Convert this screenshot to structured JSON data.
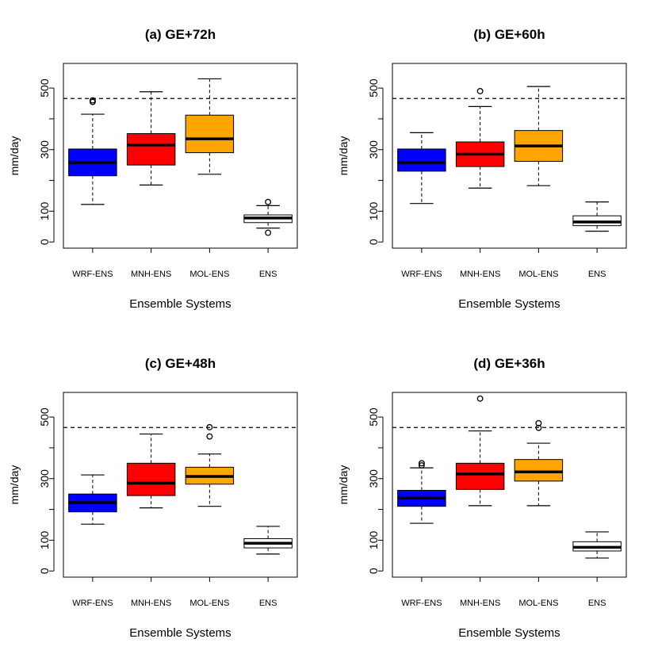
{
  "chart_data": [
    {
      "type": "boxplot",
      "title": "(a) GE+72h",
      "xlabel": "Ensemble Systems",
      "ylabel": "mm/day",
      "ylim": [
        -20,
        580
      ],
      "yticks": [
        0,
        100,
        300,
        500
      ],
      "reference_line": 466,
      "categories": [
        "WRF-ENS",
        "MNH-ENS",
        "MOL-ENS",
        "ENS"
      ],
      "colors": [
        "#0000ff",
        "#ff0000",
        "#ffa500",
        "#ffffff"
      ],
      "boxes": [
        {
          "lower_whisker": 122,
          "q1": 215,
          "median": 258,
          "q3": 302,
          "upper_whisker": 415,
          "outliers": [
            455,
            460
          ]
        },
        {
          "lower_whisker": 185,
          "q1": 250,
          "median": 315,
          "q3": 352,
          "upper_whisker": 488,
          "outliers": []
        },
        {
          "lower_whisker": 220,
          "q1": 290,
          "median": 335,
          "q3": 412,
          "upper_whisker": 530,
          "outliers": []
        },
        {
          "lower_whisker": 45,
          "q1": 63,
          "median": 78,
          "q3": 88,
          "upper_whisker": 118,
          "outliers": [
            130,
            30
          ]
        }
      ]
    },
    {
      "type": "boxplot",
      "title": "(b) GE+60h",
      "xlabel": "Ensemble Systems",
      "ylabel": "mm/day",
      "ylim": [
        -20,
        580
      ],
      "yticks": [
        0,
        100,
        300,
        500
      ],
      "reference_line": 466,
      "categories": [
        "WRF-ENS",
        "MNH-ENS",
        "MOL-ENS",
        "ENS"
      ],
      "colors": [
        "#0000ff",
        "#ff0000",
        "#ffa500",
        "#ffffff"
      ],
      "boxes": [
        {
          "lower_whisker": 125,
          "q1": 230,
          "median": 258,
          "q3": 302,
          "upper_whisker": 355,
          "outliers": []
        },
        {
          "lower_whisker": 175,
          "q1": 245,
          "median": 285,
          "q3": 325,
          "upper_whisker": 440,
          "outliers": [
            490
          ]
        },
        {
          "lower_whisker": 183,
          "q1": 262,
          "median": 312,
          "q3": 362,
          "upper_whisker": 505,
          "outliers": []
        },
        {
          "lower_whisker": 35,
          "q1": 53,
          "median": 65,
          "q3": 85,
          "upper_whisker": 130,
          "outliers": []
        }
      ]
    },
    {
      "type": "boxplot",
      "title": "(c) GE+48h",
      "xlabel": "Ensemble Systems",
      "ylabel": "mm/day",
      "ylim": [
        -20,
        580
      ],
      "yticks": [
        0,
        100,
        300,
        500
      ],
      "reference_line": 466,
      "categories": [
        "WRF-ENS",
        "MNH-ENS",
        "MOL-ENS",
        "ENS"
      ],
      "colors": [
        "#0000ff",
        "#ff0000",
        "#ffa500",
        "#ffffff"
      ],
      "boxes": [
        {
          "lower_whisker": 152,
          "q1": 192,
          "median": 222,
          "q3": 250,
          "upper_whisker": 312,
          "outliers": []
        },
        {
          "lower_whisker": 205,
          "q1": 245,
          "median": 285,
          "q3": 350,
          "upper_whisker": 445,
          "outliers": []
        },
        {
          "lower_whisker": 210,
          "q1": 282,
          "median": 307,
          "q3": 337,
          "upper_whisker": 380,
          "outliers": [
            437,
            467
          ]
        },
        {
          "lower_whisker": 55,
          "q1": 75,
          "median": 90,
          "q3": 105,
          "upper_whisker": 145,
          "outliers": []
        }
      ]
    },
    {
      "type": "boxplot",
      "title": "(d) GE+36h",
      "xlabel": "Ensemble Systems",
      "ylabel": "mm/day",
      "ylim": [
        -20,
        580
      ],
      "yticks": [
        0,
        100,
        300,
        500
      ],
      "reference_line": 466,
      "categories": [
        "WRF-ENS",
        "MNH-ENS",
        "MOL-ENS",
        "ENS"
      ],
      "colors": [
        "#0000ff",
        "#ff0000",
        "#ffa500",
        "#ffffff"
      ],
      "boxes": [
        {
          "lower_whisker": 155,
          "q1": 210,
          "median": 237,
          "q3": 262,
          "upper_whisker": 335,
          "outliers": [
            343,
            350
          ]
        },
        {
          "lower_whisker": 212,
          "q1": 265,
          "median": 315,
          "q3": 350,
          "upper_whisker": 455,
          "outliers": [
            560
          ]
        },
        {
          "lower_whisker": 212,
          "q1": 292,
          "median": 322,
          "q3": 362,
          "upper_whisker": 415,
          "outliers": [
            465,
            480
          ]
        },
        {
          "lower_whisker": 42,
          "q1": 65,
          "median": 77,
          "q3": 95,
          "upper_whisker": 127,
          "outliers": []
        }
      ]
    }
  ]
}
